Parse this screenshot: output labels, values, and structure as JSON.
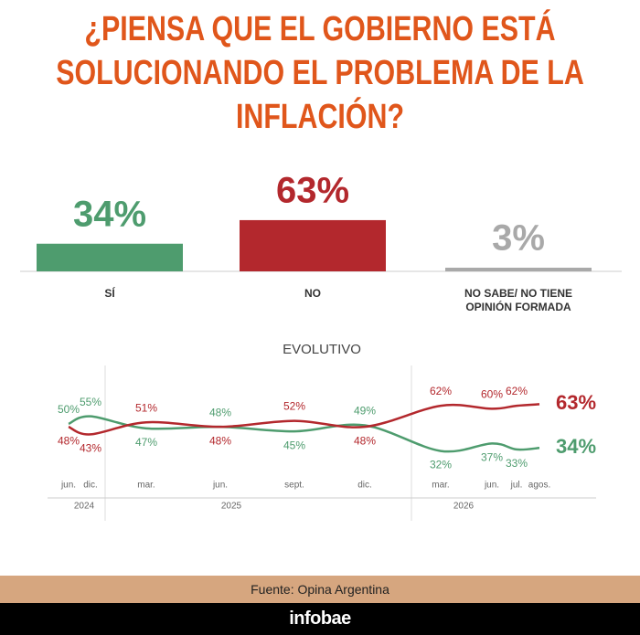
{
  "chart_data": [
    {
      "type": "bar",
      "title": "¿PIENSA QUE EL GOBIERNO ESTÁ SOLUCIONANDO EL PROBLEMA DE LA INFLACIÓN?",
      "categories": [
        "SÍ",
        "NO",
        "NO SABE/ NO TIENE OPINIÓN FORMADA"
      ],
      "values": [
        34,
        63,
        3
      ],
      "value_labels": [
        "34%",
        "63%",
        "3%"
      ],
      "colors": [
        "#4e9c6e",
        "#b3282d",
        "#a9a9a9"
      ]
    },
    {
      "type": "line",
      "title": "EVOLUTIVO",
      "categories": [
        "jun.",
        "dic.",
        "mar.",
        "jun.",
        "sept.",
        "dic.",
        "mar.",
        "jun.",
        "jul.",
        "agos."
      ],
      "years": [
        "2024",
        "2025",
        "2026"
      ],
      "series": [
        {
          "color": "#4e9c6e",
          "values": [
            50,
            55,
            47,
            48,
            45,
            49,
            32,
            37,
            33,
            34
          ],
          "value_labels": [
            "50%",
            "55%",
            "47%",
            "48%",
            "45%",
            "49%",
            "32%",
            "37%",
            "33%",
            "34%"
          ]
        },
        {
          "color": "#b3282d",
          "values": [
            48,
            43,
            51,
            48,
            52,
            48,
            62,
            60,
            62,
            63
          ],
          "value_labels": [
            "48%",
            "43%",
            "51%",
            "48%",
            "52%",
            "48%",
            "62%",
            "60%",
            "62%",
            "63%"
          ]
        }
      ]
    }
  ],
  "source": "Fuente: Opina Argentina",
  "brand": "infobae"
}
